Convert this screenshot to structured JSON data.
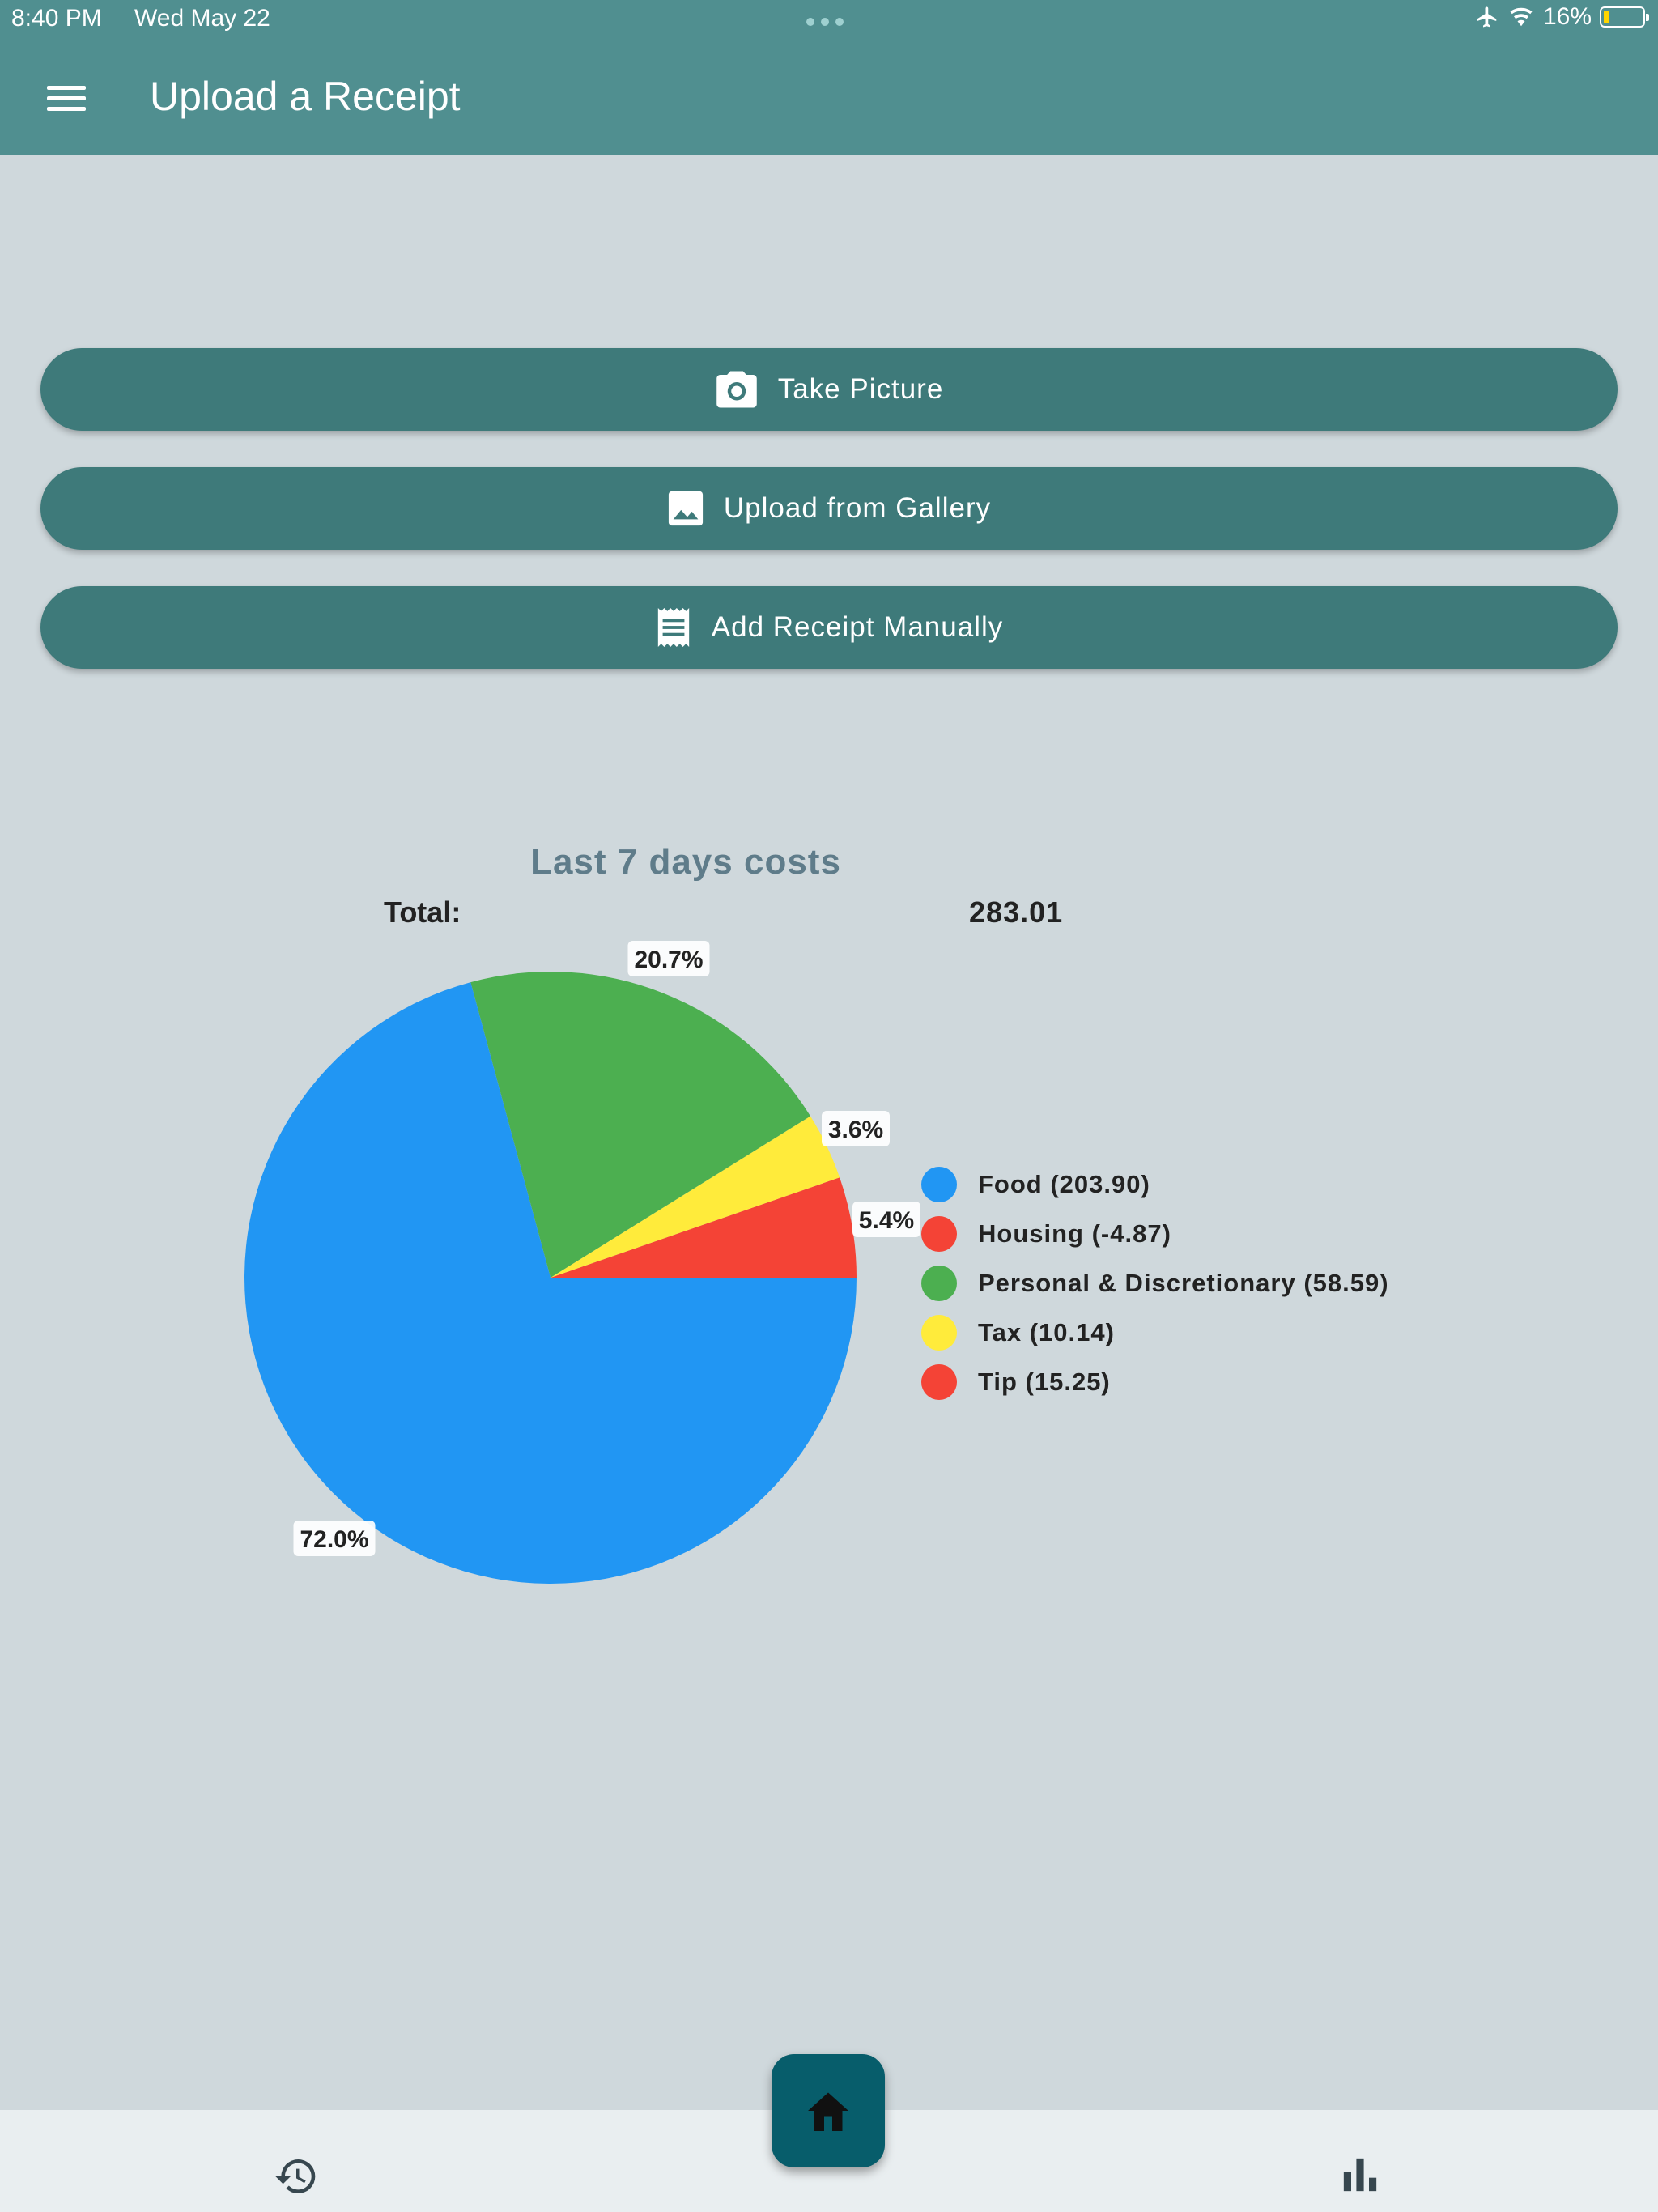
{
  "status_bar": {
    "time": "8:40 PM",
    "date": "Wed May 22",
    "battery_text": "16%",
    "battery_level": 0.16
  },
  "app_bar": {
    "title": "Upload a Receipt",
    "menu_icon": "hamburger-menu-icon"
  },
  "actions": [
    {
      "label": "Take Picture",
      "icon": "camera-icon"
    },
    {
      "label": "Upload from Gallery",
      "icon": "image-icon"
    },
    {
      "label": "Add Receipt Manually",
      "icon": "receipt-icon"
    }
  ],
  "summary": {
    "title": "Last 7 days costs",
    "total_label": "Total:",
    "total_value": "283.01"
  },
  "chart_data": {
    "type": "pie",
    "title": "Last 7 days costs",
    "start_angle_deg": 0,
    "direction": "counterclockwise",
    "slices": [
      {
        "label": "Tip",
        "percent": 5.4,
        "color": "#f44336",
        "value_label": "5.4%"
      },
      {
        "label": "Tax",
        "percent": 3.6,
        "color": "#ffeb3b",
        "value_label": "3.6%"
      },
      {
        "label": "Personal & Discretionary",
        "percent": 20.7,
        "color": "#4caf50",
        "value_label": "20.7%"
      },
      {
        "label": "Food",
        "percent": 72.0,
        "color": "#2196f3",
        "value_label": "72.0%"
      }
    ],
    "legend_position": "right",
    "legend": [
      {
        "label": "Food (203.90)",
        "color": "#2196f3"
      },
      {
        "label": "Housing (-4.87)",
        "color": "#f44336"
      },
      {
        "label": "Personal & Discretionary (58.59)",
        "color": "#4caf50"
      },
      {
        "label": "Tax (10.14)",
        "color": "#ffeb3b"
      },
      {
        "label": "Tip (15.25)",
        "color": "#f44336"
      }
    ]
  },
  "bottom_nav": {
    "left_icon": "history-icon",
    "center_icon": "home-icon",
    "right_icon": "bar-chart-icon"
  },
  "colors": {
    "app_bar": "#508f90",
    "button": "#3e7a7a",
    "background": "#cfd8dc",
    "fab": "#075d6b"
  }
}
